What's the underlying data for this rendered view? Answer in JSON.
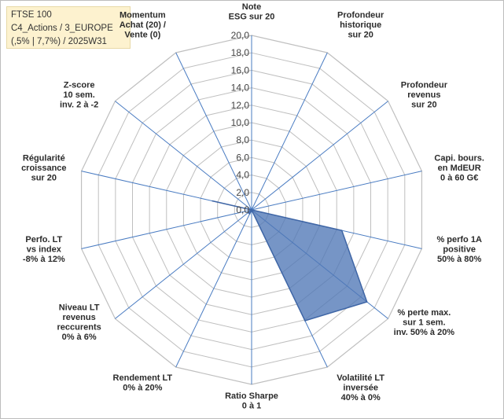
{
  "info": {
    "line1": "FTSE 100",
    "line2": "C4_Actions / 3_EUROPE",
    "line3": "(,5% | 7,7%) / 2025W31"
  },
  "chart_data": {
    "type": "radar",
    "rmax": 20,
    "ticks": [
      "0,0",
      "2,0",
      "4,0",
      "6,0",
      "8,0",
      "10,0",
      "12,0",
      "14,0",
      "16,0",
      "18,0",
      "20,0"
    ],
    "axes": [
      [
        "Note",
        "ESG sur 20"
      ],
      [
        "Profondeur",
        "historique",
        "sur 20"
      ],
      [
        "Profondeur",
        "revenus",
        "sur 20"
      ],
      [
        "Capi. bours.",
        "en MdEUR",
        "0 à 60 G€"
      ],
      [
        "% perfo 1A",
        "positive",
        "50% à 80%"
      ],
      [
        "% perte max.",
        "sur 1 sem.",
        "inv. 50% à 20%"
      ],
      [
        "Volatilité LT",
        "inversée",
        "40% à 0%"
      ],
      [
        "Ratio Sharpe",
        "0 à 1"
      ],
      [
        "Rendement LT",
        "0% à 20%"
      ],
      [
        "Niveau LT",
        "revenus",
        "reccurents",
        "0% à 6%"
      ],
      [
        "Perfo. LT",
        "vs index",
        "-8% à 12%"
      ],
      [
        "Régularité",
        "croissance",
        "sur 20"
      ],
      [
        "Z-score",
        "10 sem.",
        "inv. 2 à -2"
      ],
      [
        "Momentum",
        "Achat (20) /",
        "Vente (0)"
      ]
    ],
    "series": [
      {
        "values": [
          0,
          0,
          0,
          0,
          10.6,
          16.9,
          14.1,
          0,
          0.5,
          0.5,
          0,
          4.6,
          0,
          0
        ],
        "color": "#4f77b6"
      }
    ],
    "spoke_color": "#4a7cc2",
    "grid_color": "#bfbfbf"
  }
}
